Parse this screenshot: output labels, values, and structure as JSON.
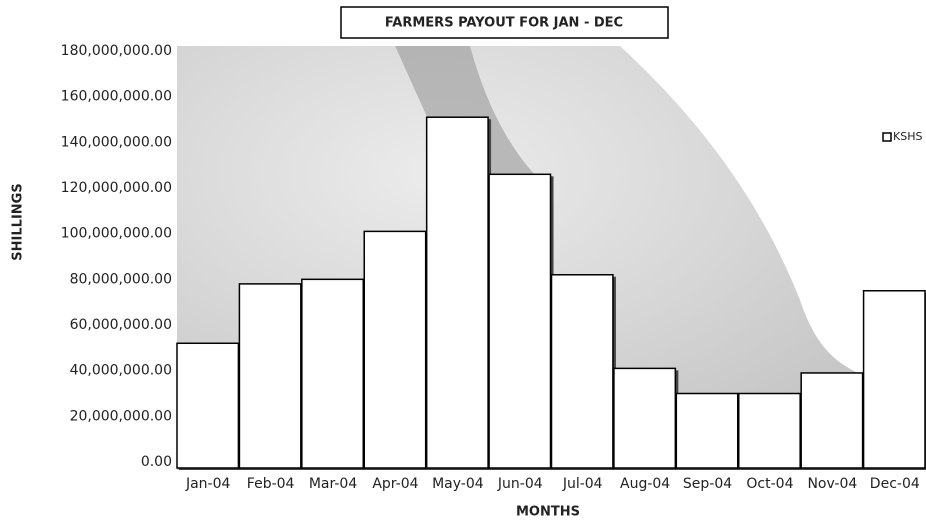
{
  "chart_data": {
    "type": "bar",
    "title": "FARMERS PAYOUT FOR JAN - DEC",
    "x_label": "MONTHS",
    "y_label": "SHILLINGS",
    "categories": [
      "Jan-04",
      "Feb-04",
      "Mar-04",
      "Apr-04",
      "May-04",
      "Jun-04",
      "Jul-04",
      "Aug-04",
      "Sep-04",
      "Oct-04",
      "Nov-04",
      "Dec-04"
    ],
    "series": [
      {
        "name": "KSHS",
        "color": "#ffffff",
        "values": [
          52000000,
          78000000,
          80000000,
          101000000,
          151000000,
          126000000,
          82000000,
          41000000,
          30000000,
          30000000,
          39000000,
          75000000
        ]
      }
    ],
    "ylim": [
      0,
      180000000
    ],
    "yticks": [
      {
        "value": 0,
        "label": "0.00"
      },
      {
        "value": 20000000,
        "label": "20,000,000.00"
      },
      {
        "value": 40000000,
        "label": "40,000,000.00"
      },
      {
        "value": 60000000,
        "label": "60,000,000.00"
      },
      {
        "value": 80000000,
        "label": "80,000,000.00"
      },
      {
        "value": 100000000,
        "label": "100,000,000.00"
      },
      {
        "value": 120000000,
        "label": "120,000,000.00"
      },
      {
        "value": 140000000,
        "label": "140,000,000.00"
      },
      {
        "value": 160000000,
        "label": "160,000,000.00"
      },
      {
        "value": 180000000,
        "label": "180,000,000.00"
      }
    ],
    "legend": "right"
  }
}
